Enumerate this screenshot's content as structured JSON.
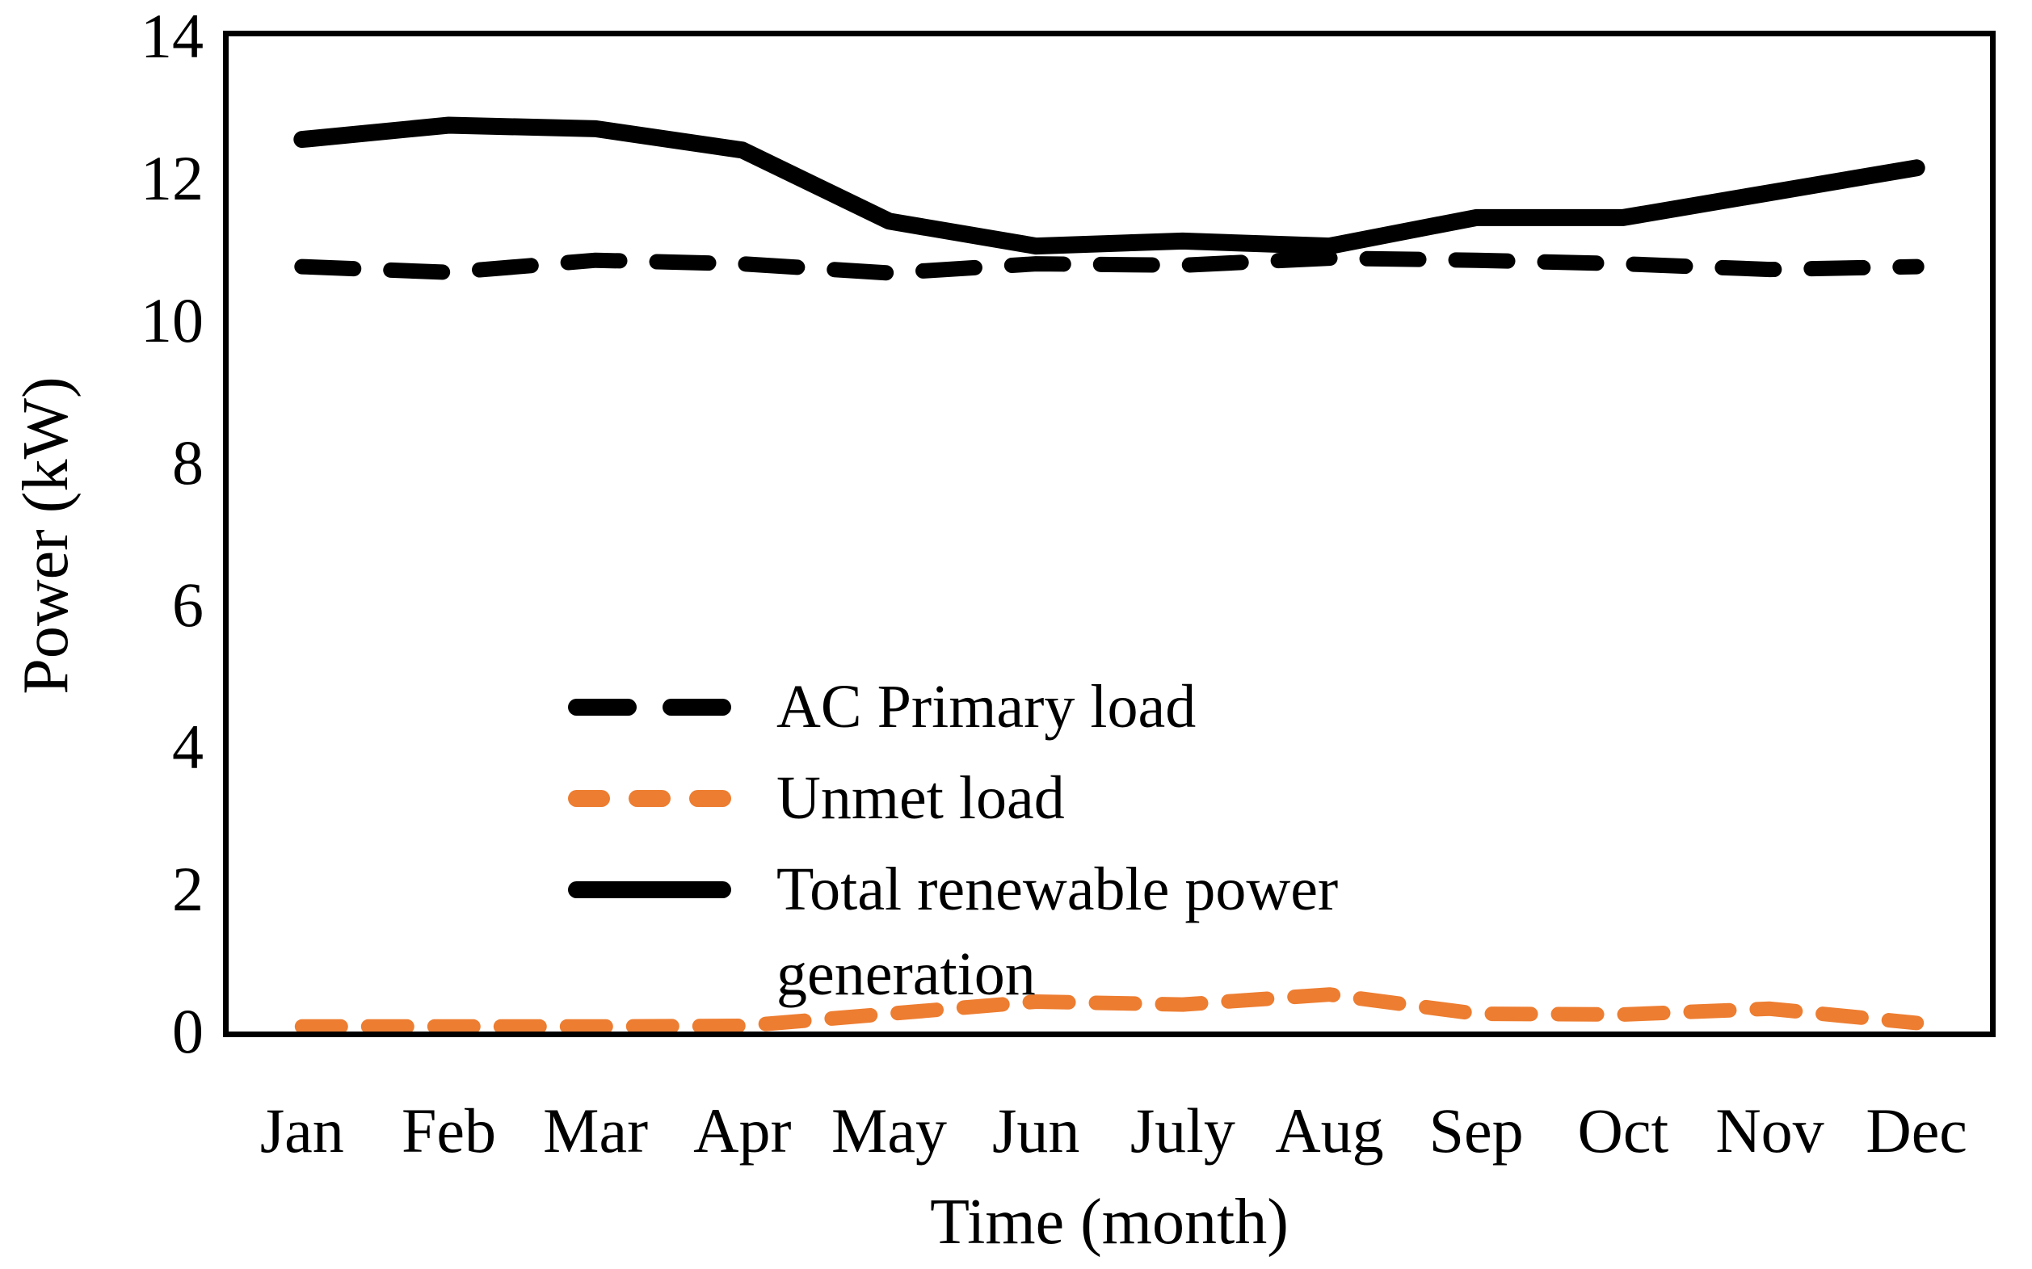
{
  "chart_data": {
    "type": "line",
    "categories": [
      "Jan",
      "Feb",
      "Mar",
      "Apr",
      "May",
      "Jun",
      "July",
      "Aug",
      "Sep",
      "Oct",
      "Nov",
      "Dec"
    ],
    "series": [
      {
        "name": "AC Primary load",
        "color": "#000000",
        "line_style": "dashed",
        "values": [
          10.76,
          10.68,
          10.85,
          10.8,
          10.67,
          10.8,
          10.78,
          10.88,
          10.85,
          10.8,
          10.72,
          10.76
        ]
      },
      {
        "name": "Unmet load",
        "color": "#ED7D31",
        "line_style": "dashed",
        "values": [
          0.07,
          0.07,
          0.07,
          0.08,
          0.25,
          0.42,
          0.38,
          0.52,
          0.25,
          0.24,
          0.32,
          0.12
        ]
      },
      {
        "name": "Total renewable power generation",
        "color": "#000000",
        "line_style": "solid",
        "values": [
          12.55,
          12.75,
          12.7,
          12.4,
          11.4,
          11.05,
          11.12,
          11.05,
          11.45,
          11.45,
          11.8,
          12.15
        ]
      }
    ],
    "title": "",
    "xlabel": "Time (month)",
    "ylabel": "Power (kW)",
    "ylim": [
      0,
      14
    ],
    "ytick_step": 2,
    "ytick_labels": [
      "0",
      "2",
      "4",
      "6",
      "8",
      "10",
      "12",
      "14"
    ],
    "grid": "off",
    "legend_position": "inside-left-middle"
  },
  "legend": {
    "ac_primary_label": "AC Primary load",
    "unmet_label": "Unmet load",
    "renewable_label": "Total renewable power\ngeneration"
  },
  "axes": {
    "x_title": "Time (month)",
    "y_title": "Power (kW)"
  }
}
